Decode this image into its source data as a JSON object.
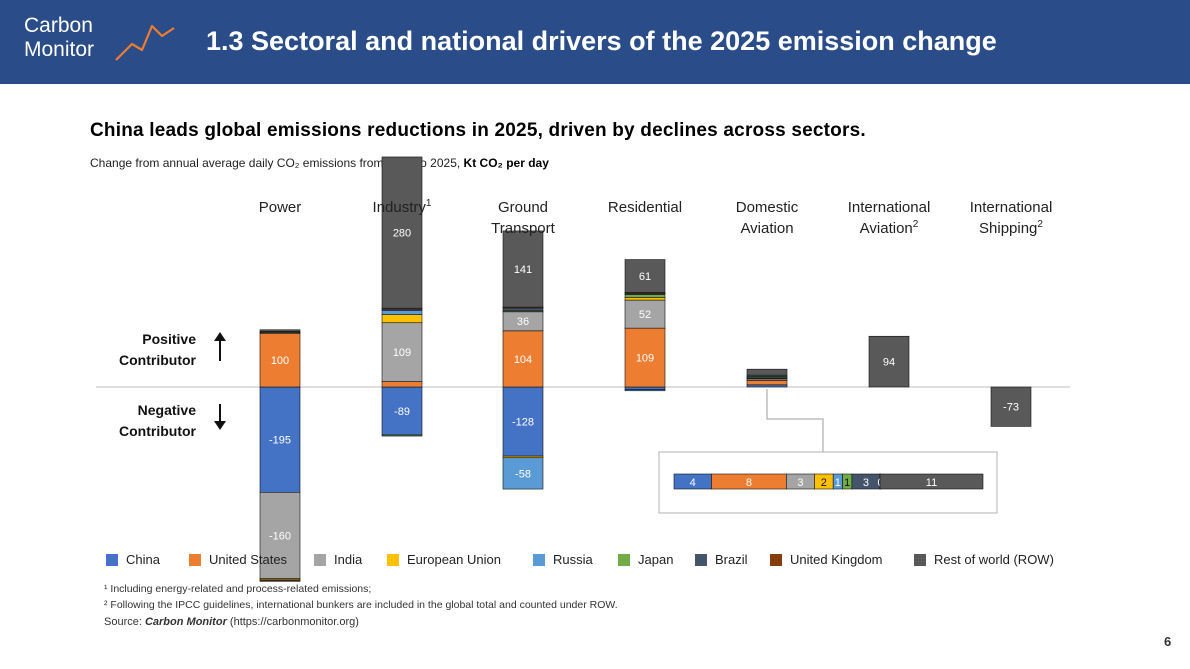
{
  "header": {
    "logo_line1": "Carbon",
    "logo_line2": "Monitor",
    "title": "1.3  Sectoral and national drivers of the 2025 emission change"
  },
  "subtitle": "China leads global emissions reductions in 2025, driven by declines across sectors.",
  "description": {
    "text": "Change from annual average daily CO₂ emissions from 2024 to 2025, ",
    "unit": "Kt CO₂ per day"
  },
  "contributors": {
    "positive_line1": "Positive",
    "positive_line2": "Contributor",
    "negative_line1": "Negative",
    "negative_line2": "Contributor"
  },
  "colors": {
    "China": "#4472c4",
    "United States": "#ed7d31",
    "India": "#a5a5a5",
    "European Union": "#ffc000",
    "Russia": "#5b9bd5",
    "Japan": "#70ad47",
    "Brazil": "#44546a",
    "United Kingdom": "#843c0c",
    "Rest of world (ROW)": "#595959"
  },
  "chart_data": {
    "type": "bar",
    "stacked": true,
    "unit": "Kt CO₂ per day",
    "categories": [
      {
        "name": "Power",
        "sup": ""
      },
      {
        "name": "Industry",
        "sup": "1"
      },
      {
        "name": "Ground\nTransport",
        "sup": ""
      },
      {
        "name": "Residential",
        "sup": ""
      },
      {
        "name": "Domestic\nAviation",
        "sup": ""
      },
      {
        "name": "International\nAviation",
        "sup": "2"
      },
      {
        "name": "International\nShipping",
        "sup": "2"
      }
    ],
    "series": [
      {
        "name": "China",
        "values": [
          -195,
          -89,
          -128,
          -5,
          4,
          0,
          0
        ]
      },
      {
        "name": "United States",
        "values": [
          100,
          10,
          104,
          109,
          8,
          0,
          0
        ]
      },
      {
        "name": "India",
        "values": [
          -160,
          109,
          36,
          52,
          3,
          0,
          0
        ]
      },
      {
        "name": "European Union",
        "values": [
          -2,
          15,
          -3,
          5,
          2,
          0,
          0
        ]
      },
      {
        "name": "Russia",
        "values": [
          -1,
          8,
          -58,
          -2,
          1,
          0,
          0
        ]
      },
      {
        "name": "Japan",
        "values": [
          1,
          -1,
          1,
          5,
          1,
          0,
          0
        ]
      },
      {
        "name": "Brazil",
        "values": [
          2,
          3,
          6,
          3,
          3,
          0,
          0
        ]
      },
      {
        "name": "United Kingdom",
        "values": [
          -1,
          1,
          1,
          1,
          0,
          0,
          0
        ]
      },
      {
        "name": "Rest of world (ROW)",
        "values": [
          3,
          280,
          141,
          61,
          11,
          94,
          -73
        ]
      }
    ],
    "inset": {
      "category": "Domestic\nAviation",
      "values": [
        4,
        8,
        3,
        2,
        1,
        1,
        3,
        0,
        11
      ],
      "labels": [
        "4",
        "8",
        "3",
        "2",
        "1",
        "1",
        "3",
        "0",
        "11"
      ]
    }
  },
  "legend": [
    "China",
    "United States",
    "India",
    "European Union",
    "Russia",
    "Japan",
    "Brazil",
    "United Kingdom",
    "Rest of world (ROW)"
  ],
  "footnotes": {
    "note1": "¹ Including energy-related and process-related emissions;",
    "note2": "² Following the IPCC guidelines, international bunkers are included in the global total and counted under ROW.",
    "source_prefix": "Source: ",
    "source_name": "Carbon Monitor",
    "source_url": " (https://carbonmonitor.org)"
  },
  "page_number": "6"
}
